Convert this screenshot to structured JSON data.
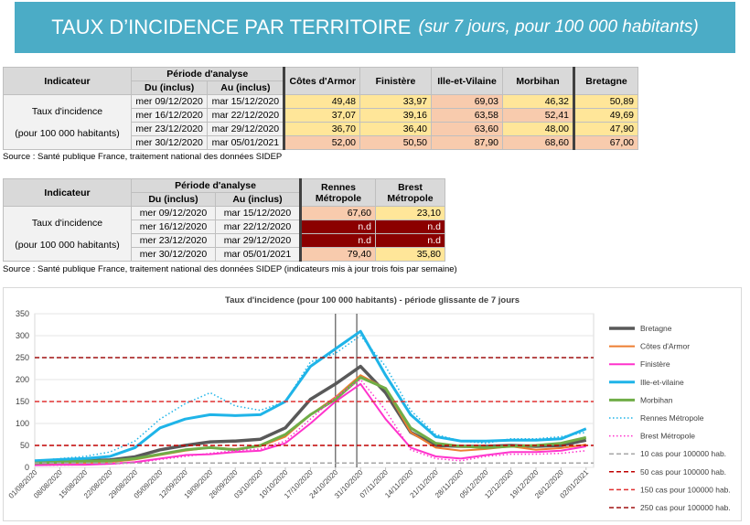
{
  "banner": {
    "title": "TAUX D’INCIDENCE PAR TERRITOIRE",
    "subtitle": "(sur 7 jours, pour 100 000 habitants)"
  },
  "table1": {
    "h_indicateur": "Indicateur",
    "h_periode": "Période d'analyse",
    "h_du": "Du (inclus)",
    "h_au": "Au (inclus)",
    "cols": [
      "Côtes d'Armor",
      "Finistère",
      "Ille-et-Vilaine",
      "Morbihan",
      "Bretagne"
    ],
    "row_label_1": "Taux d'incidence",
    "row_label_2": "(pour 100 000 habitants)",
    "rows": [
      {
        "du": "mer 09/12/2020",
        "au": "mar 15/12/2020",
        "v": [
          "49,48",
          "33,97",
          "69,03",
          "46,32",
          "50,89"
        ]
      },
      {
        "du": "mer 16/12/2020",
        "au": "mar 22/12/2020",
        "v": [
          "37,07",
          "39,16",
          "63,58",
          "52,41",
          "49,69"
        ]
      },
      {
        "du": "mer 23/12/2020",
        "au": "mar 29/12/2020",
        "v": [
          "36,70",
          "36,40",
          "63,60",
          "48,00",
          "47,90"
        ]
      },
      {
        "du": "mer 30/12/2020",
        "au": "mar 05/01/2021",
        "v": [
          "52,00",
          "50,50",
          "87,90",
          "68,60",
          "67,00"
        ]
      }
    ],
    "colors": [
      [
        "#ffe699",
        "#ffe699",
        "#f8cbad",
        "#ffe699",
        "#ffe699"
      ],
      [
        "#ffe699",
        "#ffe699",
        "#f8cbad",
        "#f8cbad",
        "#ffe699"
      ],
      [
        "#ffe699",
        "#ffe699",
        "#f8cbad",
        "#ffe699",
        "#ffe699"
      ],
      [
        "#f8cbad",
        "#f8cbad",
        "#f8cbad",
        "#f8cbad",
        "#f8cbad"
      ]
    ]
  },
  "source1": "Source  : Santé publique France, traitement national des données SIDEP",
  "table2": {
    "h_indicateur": "Indicateur",
    "h_periode": "Période d'analyse",
    "h_du": "Du (inclus)",
    "h_au": "Au (inclus)",
    "col1a": "Rennes",
    "col1b": "Métropole",
    "col2a": "Brest",
    "col2b": "Métropole",
    "row_label_1": "Taux d'incidence",
    "row_label_2": "(pour 100 000 habitants)",
    "rows": [
      {
        "du": "mer 09/12/2020",
        "au": "mar 15/12/2020",
        "v": [
          "67,60",
          "23,10"
        ]
      },
      {
        "du": "mer 16/12/2020",
        "au": "mar 22/12/2020",
        "v": [
          "n.d",
          "n.d"
        ]
      },
      {
        "du": "mer 23/12/2020",
        "au": "mar 29/12/2020",
        "v": [
          "n.d",
          "n.d"
        ]
      },
      {
        "du": "mer 30/12/2020",
        "au": "mar 05/01/2021",
        "v": [
          "79,40",
          "35,80"
        ]
      }
    ],
    "colors": [
      [
        "#f8cbad",
        "#ffe699"
      ],
      [
        "#8b0000",
        "#8b0000"
      ],
      [
        "#8b0000",
        "#8b0000"
      ],
      [
        "#f8cbad",
        "#ffe699"
      ]
    ]
  },
  "source2": "Source  : Santé publique France, traitement national des données SIDEP (indicateurs mis à jour trois fois par semaine)",
  "chart_data": {
    "type": "line",
    "title": "Taux d'incidence (pour 100 000 habitants) - période glissante de 7 jours",
    "ylim": [
      0,
      350
    ],
    "yticks": [
      0,
      50,
      100,
      150,
      200,
      250,
      300,
      350
    ],
    "x_ticks": [
      "01/08/2020",
      "08/08/2020",
      "15/08/2020",
      "22/08/2020",
      "29/08/2020",
      "05/09/2020",
      "12/09/2020",
      "19/09/2020",
      "26/09/2020",
      "03/10/2020",
      "10/10/2020",
      "17/10/2020",
      "24/10/2020",
      "31/10/2020",
      "07/11/2020",
      "14/11/2020",
      "21/11/2020",
      "28/11/2020",
      "05/12/2020",
      "12/12/2020",
      "19/12/2020",
      "26/12/2020",
      "02/01/2021"
    ],
    "vertical_markers": [
      "24/10/2020",
      "30/10/2020"
    ],
    "series": [
      {
        "name": "Bretagne",
        "color": "#595959",
        "style": "solid",
        "width": 3.5,
        "values": [
          12,
          14,
          15,
          17,
          24,
          40,
          50,
          58,
          60,
          64,
          90,
          155,
          190,
          230,
          170,
          80,
          50,
          48,
          48,
          50,
          48,
          50,
          62
        ]
      },
      {
        "name": "Côtes d'Armor",
        "color": "#ed7d31",
        "style": "solid",
        "width": 2,
        "values": [
          8,
          10,
          10,
          12,
          18,
          28,
          38,
          45,
          42,
          48,
          70,
          120,
          160,
          210,
          180,
          80,
          45,
          38,
          42,
          48,
          40,
          44,
          52
        ]
      },
      {
        "name": "Finistère",
        "color": "#ff33cc",
        "style": "solid",
        "width": 2,
        "values": [
          5,
          6,
          6,
          8,
          12,
          20,
          28,
          30,
          35,
          38,
          55,
          100,
          150,
          190,
          110,
          45,
          25,
          20,
          28,
          35,
          35,
          38,
          48
        ]
      },
      {
        "name": "Ille-et-vilaine",
        "color": "#1fb4e8",
        "style": "solid",
        "width": 3,
        "values": [
          15,
          18,
          20,
          25,
          45,
          90,
          110,
          120,
          118,
          120,
          150,
          230,
          270,
          310,
          210,
          120,
          70,
          60,
          60,
          62,
          62,
          65,
          88
        ]
      },
      {
        "name": "Morbihan",
        "color": "#70ad47",
        "style": "solid",
        "width": 3,
        "values": [
          10,
          12,
          14,
          15,
          20,
          30,
          40,
          45,
          40,
          50,
          75,
          120,
          155,
          205,
          180,
          90,
          55,
          48,
          45,
          48,
          50,
          55,
          68
        ]
      },
      {
        "name": "Rennes Métropole",
        "color": "#1fb4e8",
        "style": "dotted",
        "width": 1.5,
        "values": [
          15,
          20,
          25,
          35,
          60,
          110,
          145,
          170,
          140,
          130,
          150,
          240,
          260,
          300,
          230,
          130,
          75,
          60,
          55,
          65,
          65,
          70,
          80
        ]
      },
      {
        "name": "Brest Métropole",
        "color": "#ff33cc",
        "style": "dotted",
        "width": 1.5,
        "values": [
          5,
          5,
          6,
          8,
          10,
          18,
          25,
          32,
          38,
          42,
          60,
          110,
          160,
          200,
          130,
          40,
          20,
          15,
          25,
          30,
          30,
          32,
          38
        ]
      },
      {
        "name": "10 cas pour 100000 hab.",
        "color": "#a6a6a6",
        "style": "dashed",
        "width": 1.5,
        "values": [
          10
        ]
      },
      {
        "name": "50 cas pour 100000 hab.",
        "color": "#c00000",
        "style": "dashed",
        "width": 1.5,
        "values": [
          50
        ]
      },
      {
        "name": "150 cas pour 100000 hab.",
        "color": "#e03030",
        "style": "dashed",
        "width": 1.5,
        "values": [
          150
        ]
      },
      {
        "name": "250 cas pour 100000 hab.",
        "color": "#a01010",
        "style": "dashed",
        "width": 1.5,
        "values": [
          250
        ]
      }
    ]
  }
}
